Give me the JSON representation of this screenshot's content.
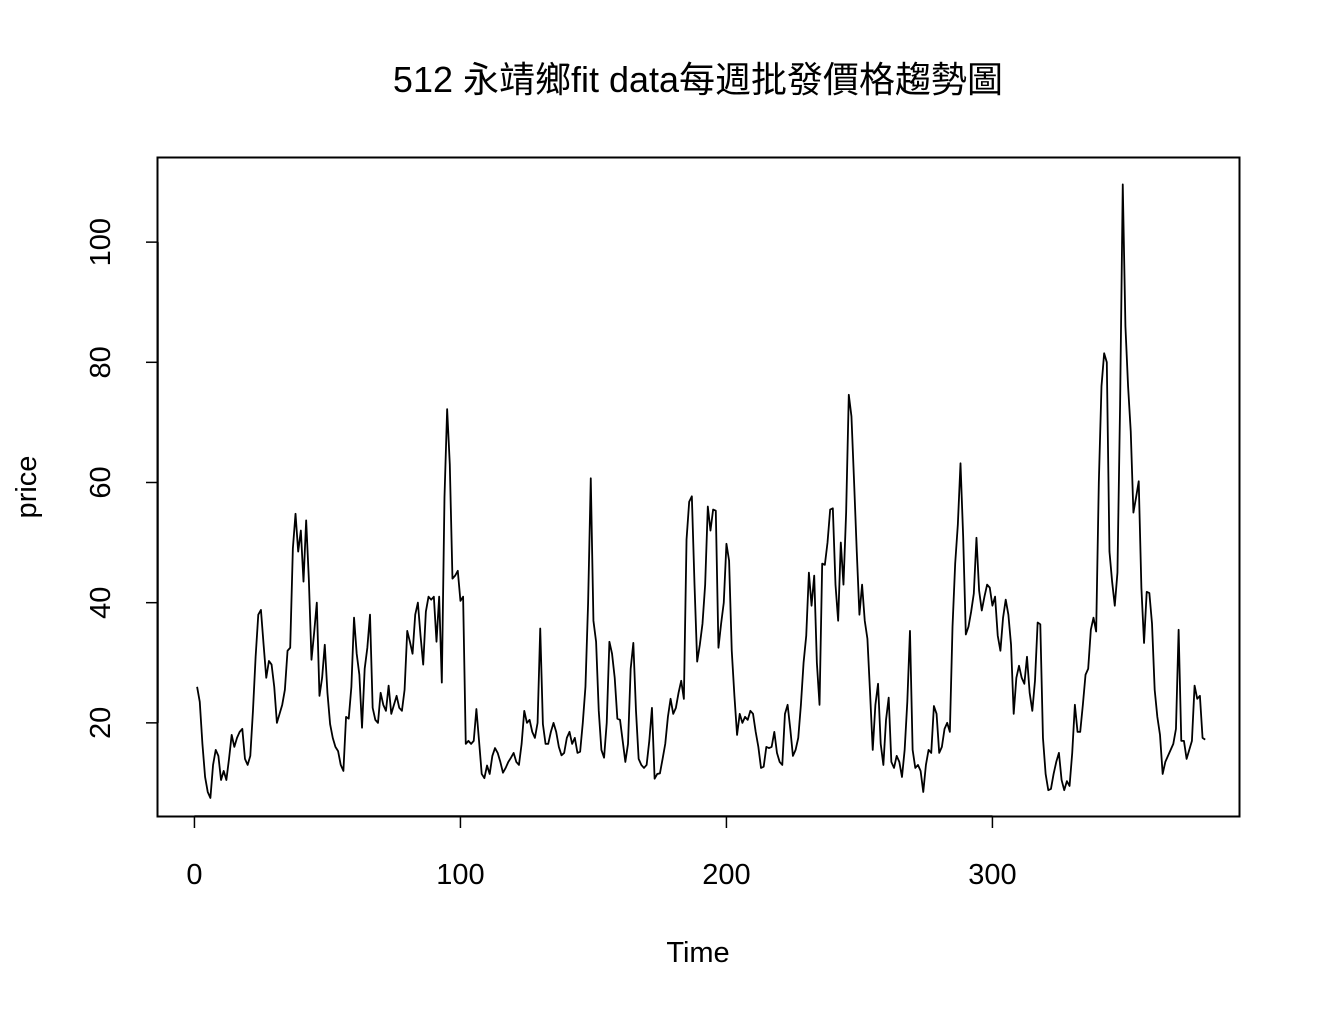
{
  "chart_data": {
    "type": "line",
    "title": "512 永靖鄉fit data每週批發價格趨勢圖",
    "xlabel": "Time",
    "ylabel": "price",
    "xlim": [
      -13.7,
      392.7
    ],
    "ylim": [
      4.5,
      114.0
    ],
    "x_ticks": [
      0,
      100,
      200,
      300
    ],
    "x_tick_labels": [
      "0",
      "100",
      "200",
      "300"
    ],
    "y_ticks": [
      20,
      40,
      60,
      80,
      100
    ],
    "y_tick_labels": [
      "20",
      "40",
      "60",
      "80",
      "100"
    ],
    "grid": false,
    "legend": "none",
    "line_color": "#000000",
    "series": [
      {
        "x_start": 1,
        "x_step": 1,
        "values": [
          26.0,
          23.5,
          16.5,
          11.0,
          8.5,
          7.5,
          13.0,
          15.5,
          14.5,
          10.5,
          12.0,
          10.5,
          14.0,
          18.0,
          16.0,
          17.5,
          18.5,
          19.0,
          14.0,
          13.0,
          14.5,
          22.0,
          31.0,
          38.0,
          38.8,
          33.0,
          27.5,
          30.3,
          29.7,
          26.0,
          20.0,
          21.5,
          23.0,
          25.5,
          32.0,
          32.5,
          49.0,
          54.8,
          48.5,
          52.0,
          43.5,
          53.7,
          44.0,
          30.5,
          35.0,
          40.0,
          24.5,
          27.5,
          33.0,
          25.0,
          19.8,
          17.5,
          16.0,
          15.3,
          13.0,
          12.0,
          21.0,
          20.7,
          26.0,
          37.5,
          31.5,
          28.0,
          19.2,
          29.0,
          32.5,
          38.0,
          22.5,
          20.5,
          20.0,
          25.0,
          23.0,
          22.0,
          26.2,
          21.5,
          23.0,
          24.5,
          22.5,
          22.0,
          25.5,
          35.3,
          33.5,
          31.5,
          38.0,
          40.0,
          34.5,
          29.7,
          38.5,
          41.0,
          40.5,
          41.0,
          33.5,
          41.0,
          26.7,
          57.5,
          72.2,
          63.0,
          44.0,
          44.5,
          45.3,
          40.3,
          41.0,
          16.5,
          17.0,
          16.5,
          17.0,
          22.3,
          17.0,
          11.5,
          10.8,
          12.9,
          11.5,
          14.5,
          15.8,
          15.0,
          13.5,
          11.7,
          12.5,
          13.5,
          14.2,
          15.0,
          13.5,
          13.0,
          16.5,
          22.0,
          20.0,
          20.5,
          18.5,
          17.5,
          20.0,
          35.7,
          19.8,
          16.5,
          16.5,
          18.5,
          20.0,
          18.5,
          16.0,
          14.6,
          15.0,
          17.5,
          18.5,
          16.5,
          17.5,
          15.0,
          15.2,
          20.0,
          26.0,
          40.0,
          60.7,
          37.0,
          33.5,
          22.0,
          15.5,
          14.2,
          20.0,
          33.5,
          31.5,
          27.5,
          20.7,
          20.5,
          17.0,
          13.5,
          16.5,
          29.0,
          33.3,
          22.0,
          14.0,
          13.0,
          12.5,
          13.0,
          17.0,
          22.5,
          10.7,
          11.5,
          11.6,
          14.0,
          16.5,
          21.0,
          24.0,
          21.5,
          22.5,
          25.0,
          27.0,
          24.0,
          50.5,
          56.8,
          57.7,
          43.0,
          30.2,
          33.0,
          36.5,
          43.0,
          56.0,
          52.0,
          55.5,
          55.3,
          32.5,
          36.5,
          40.0,
          49.8,
          47.0,
          32.0,
          24.5,
          18.0,
          21.5,
          20.0,
          21.0,
          20.5,
          22.0,
          21.5,
          18.5,
          16.0,
          12.5,
          12.7,
          16.0,
          15.8,
          16.0,
          18.5,
          15.0,
          13.5,
          13.0,
          21.5,
          23.0,
          19.0,
          14.5,
          15.5,
          17.5,
          23.0,
          30.0,
          34.5,
          45.0,
          39.5,
          44.5,
          30.0,
          23.0,
          46.5,
          46.3,
          50.0,
          55.5,
          55.7,
          43.0,
          37.0,
          50.0,
          43.0,
          55.0,
          74.6,
          71.0,
          60.0,
          48.5,
          38.0,
          43.0,
          37.0,
          34.0,
          25.0,
          15.5,
          23.0,
          26.5,
          16.5,
          13.0,
          20.5,
          24.2,
          13.5,
          12.5,
          14.5,
          13.5,
          11.0,
          15.5,
          23.5,
          35.3,
          15.5,
          12.5,
          13.0,
          12.0,
          8.5,
          13.0,
          15.5,
          15.0,
          22.8,
          21.5,
          15.0,
          16.0,
          19.0,
          20.0,
          18.5,
          36.0,
          46.5,
          53.0,
          63.2,
          51.0,
          34.7,
          36.0,
          38.5,
          41.5,
          50.8,
          42.0,
          38.7,
          41.0,
          43.0,
          42.5,
          39.5,
          41.0,
          34.5,
          32.0,
          37.5,
          40.5,
          38.0,
          33.0,
          21.5,
          27.5,
          29.5,
          27.5,
          26.5,
          31.0,
          25.0,
          22.0,
          27.0,
          36.7,
          36.4,
          17.5,
          11.5,
          8.8,
          9.0,
          11.5,
          13.5,
          15.0,
          10.5,
          8.8,
          10.3,
          9.5,
          15.0,
          23.0,
          18.5,
          18.5,
          23.0,
          28.0,
          29.0,
          35.5,
          37.5,
          35.2,
          60.0,
          76.0,
          81.5,
          80.0,
          48.5,
          43.5,
          39.5,
          45.0,
          73.0,
          109.6,
          86.0,
          76.0,
          68.5,
          55.0,
          57.5,
          60.2,
          42.5,
          33.3,
          41.8,
          41.6,
          36.5,
          25.5,
          21.0,
          18.0,
          11.5,
          13.5,
          14.5,
          15.5,
          16.5,
          19.0,
          35.5,
          17.0,
          17.0,
          14.0,
          15.5,
          17.0,
          26.2,
          24.0,
          24.5,
          17.5,
          17.2
        ]
      }
    ]
  }
}
